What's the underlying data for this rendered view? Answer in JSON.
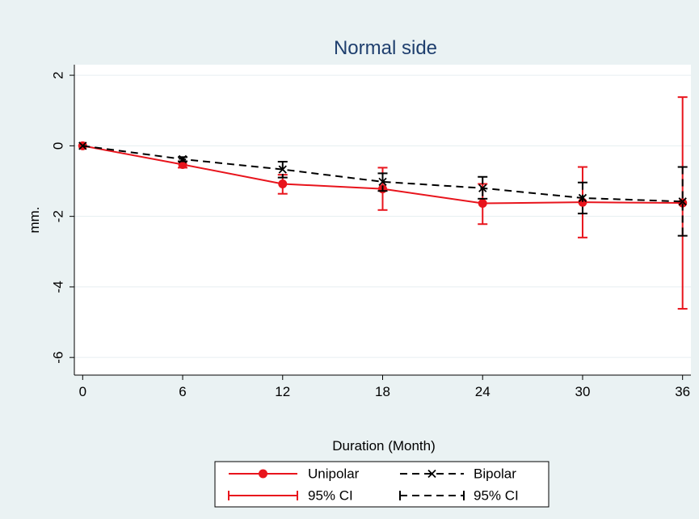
{
  "chart_data": {
    "type": "line",
    "title": "Normal side",
    "xlabel": "Duration (Month)",
    "ylabel": "mm.",
    "x_ticks": [
      0,
      6,
      12,
      18,
      24,
      30,
      36
    ],
    "y_ticks": [
      2,
      0,
      -2,
      -4,
      -6
    ],
    "xlim": [
      -0.5,
      36.5
    ],
    "ylim": [
      -6.5,
      2.3
    ],
    "grid": true,
    "legend_position": "bottom",
    "series": [
      {
        "name": "Unipolar",
        "color": "#e8141c",
        "line_style": "solid",
        "marker": "circle",
        "x": [
          0,
          6,
          12,
          18,
          24,
          30,
          36
        ],
        "y": [
          0,
          -0.53,
          -1.08,
          -1.22,
          -1.63,
          -1.6,
          -1.62
        ],
        "ci_lower": [
          0,
          -0.62,
          -1.36,
          -1.82,
          -2.22,
          -2.6,
          -4.62
        ],
        "ci_upper": [
          0,
          -0.44,
          -0.82,
          -0.62,
          -1.08,
          -0.6,
          1.38
        ]
      },
      {
        "name": "Bipolar",
        "color": "#000000",
        "line_style": "dashed",
        "marker": "x",
        "x": [
          0,
          6,
          12,
          18,
          24,
          30,
          36
        ],
        "y": [
          0,
          -0.38,
          -0.67,
          -1.02,
          -1.2,
          -1.48,
          -1.58
        ],
        "ci_lower": [
          0,
          -0.44,
          -0.9,
          -1.28,
          -1.5,
          -1.92,
          -2.55
        ],
        "ci_upper": [
          0,
          -0.32,
          -0.45,
          -0.78,
          -0.88,
          -1.04,
          -0.6
        ]
      }
    ],
    "legend": {
      "entries": [
        {
          "label": "Unipolar",
          "series": 0,
          "kind": "line"
        },
        {
          "label": "Bipolar",
          "series": 1,
          "kind": "line"
        },
        {
          "label": "95% CI",
          "series": 0,
          "kind": "ci"
        },
        {
          "label": "95% CI",
          "series": 1,
          "kind": "ci"
        }
      ]
    }
  }
}
